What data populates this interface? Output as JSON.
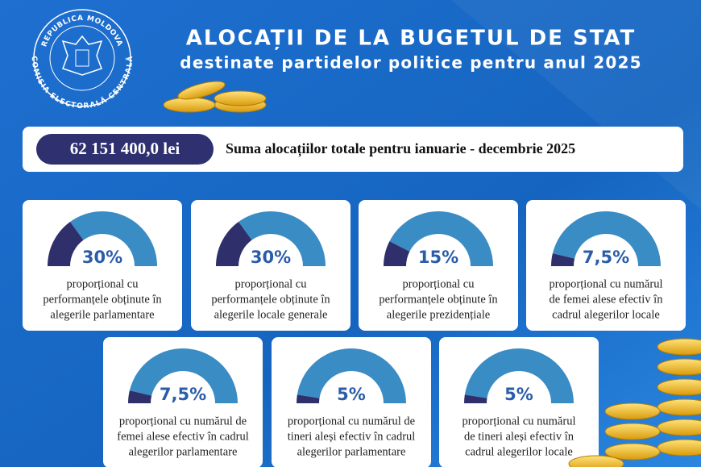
{
  "header": {
    "logo_top": "REPUBLICA MOLDOVA",
    "logo_bottom": "COMISIA ELECTORALĂ CENTRALĂ",
    "title": "ALOCAȚII DE LA BUGETUL DE STAT",
    "subtitle": "destinate partidelor politice pentru anul 2025"
  },
  "total": {
    "amount": "62 151 400,0 lei",
    "label": "Suma alocațiilor totale pentru ianuarie - decembrie 2025"
  },
  "cards": [
    {
      "value": 30,
      "value_label": "30%",
      "lines": [
        "proporțional cu",
        "performanțele obținute în",
        "alegerile parlamentare"
      ]
    },
    {
      "value": 30,
      "value_label": "30%",
      "lines": [
        "proporțional cu",
        "performanțele obținute în",
        "alegerile locale generale"
      ]
    },
    {
      "value": 15,
      "value_label": "15%",
      "lines": [
        "proporțional cu",
        "performanțele obținute în",
        "alegerile prezidențiale"
      ]
    },
    {
      "value": 7.5,
      "value_label": "7,5%",
      "lines": [
        "proporțional cu numărul",
        "de femei alese efectiv în",
        "cadrul alegerilor locale"
      ]
    },
    {
      "value": 7.5,
      "value_label": "7,5%",
      "lines": [
        "proporțional cu numărul de",
        "femei alese efectiv în cadrul",
        "alegerilor parlamentare"
      ]
    },
    {
      "value": 5,
      "value_label": "5%",
      "lines": [
        "proporțional cu numărul de",
        "tineri aleși efectiv în cadrul",
        "alegerilor parlamentare"
      ]
    },
    {
      "value": 5,
      "value_label": "5%",
      "lines": [
        "proporțional cu numărul",
        "de tineri aleși efectiv în",
        "cadrul alegerilor locale"
      ]
    }
  ]
}
